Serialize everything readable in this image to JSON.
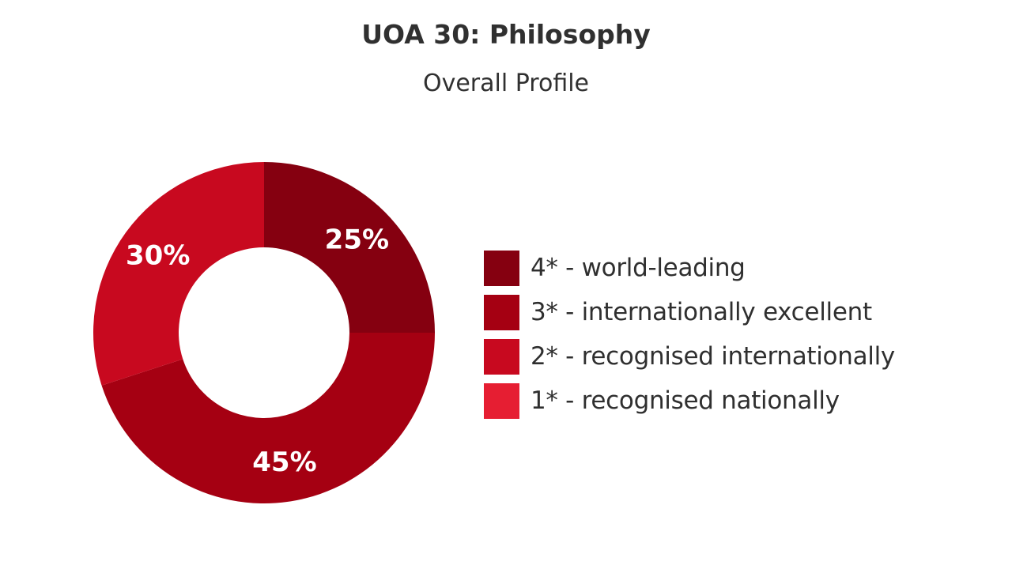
{
  "chart_data": {
    "type": "pie",
    "style": "donut",
    "title": "UOA 30: Philosophy",
    "subtitle": "Overall Profile",
    "categories": [
      "4* - world-leading",
      "3* - internationally excellent",
      "2* - recognised internationally",
      "1* - recognised nationally"
    ],
    "values": [
      25,
      45,
      30,
      0
    ],
    "value_labels": [
      "25%",
      "45%",
      "30%",
      ""
    ],
    "colors": [
      "#850010",
      "#a50012",
      "#c8091f",
      "#e61e32"
    ],
    "legend_position": "right"
  }
}
